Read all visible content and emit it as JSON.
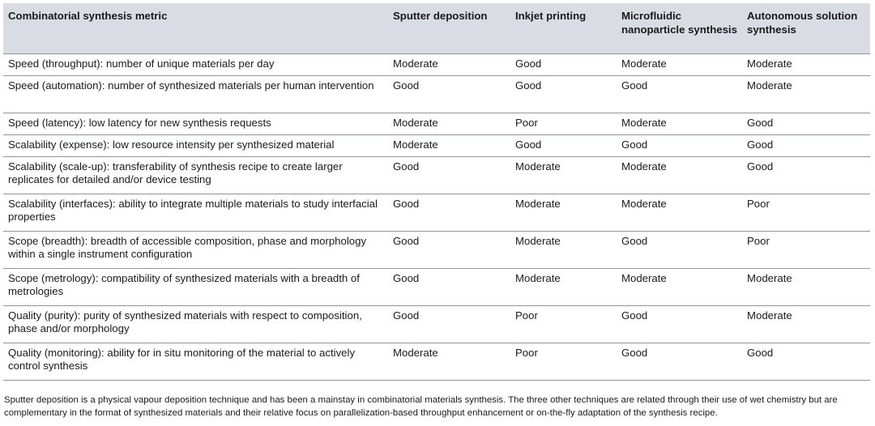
{
  "table": {
    "headers": [
      "Combinatorial synthesis metric",
      "Sputter deposition",
      "Inkjet printing",
      "Microfluidic nanoparticle synthesis",
      "Autonomous solution synthesis"
    ],
    "rows": [
      [
        "Speed (throughput): number of unique materials per day",
        "Moderate",
        "Good",
        "Moderate",
        "Moderate"
      ],
      [
        "Speed (automation): number of synthesized materials per human intervention",
        "Good",
        "Good",
        "Good",
        "Moderate"
      ],
      [
        "Speed (latency): low latency for new synthesis requests",
        "Moderate",
        "Poor",
        "Moderate",
        "Good"
      ],
      [
        "Scalability (expense): low resource intensity per synthesized material",
        "Moderate",
        "Good",
        "Good",
        "Good"
      ],
      [
        "Scalability (scale-up): transferability of synthesis recipe to create larger replicates for detailed and/or device testing",
        "Good",
        "Moderate",
        "Moderate",
        "Good"
      ],
      [
        "Scalability (interfaces): ability to integrate multiple materials to study interfacial properties",
        "Good",
        "Moderate",
        "Moderate",
        "Poor"
      ],
      [
        "Scope (breadth): breadth of accessible composition, phase and morphology within a single instrument configuration",
        "Good",
        "Moderate",
        "Good",
        "Poor"
      ],
      [
        "Scope (metrology): compatibility of synthesized materials with a breadth of metrologies",
        "Good",
        "Moderate",
        "Moderate",
        "Moderate"
      ],
      [
        "Quality (purity): purity of synthesized materials with respect to composition, phase and/or morphology",
        "Good",
        "Poor",
        "Good",
        "Moderate"
      ],
      [
        "Quality (monitoring): ability for in situ monitoring of the material to actively control synthesis",
        "Moderate",
        "Poor",
        "Good",
        "Good"
      ]
    ]
  },
  "footnote": "Sputter deposition is a physical vapour deposition technique and has been a mainstay in combinatorial materials synthesis. The three other techniques are related through their use of wet chemistry but are complementary in the format of synthesized materials and their relative focus on parallelization-based throughput enhancement or on-the-fly adaptation of the synthesis recipe."
}
